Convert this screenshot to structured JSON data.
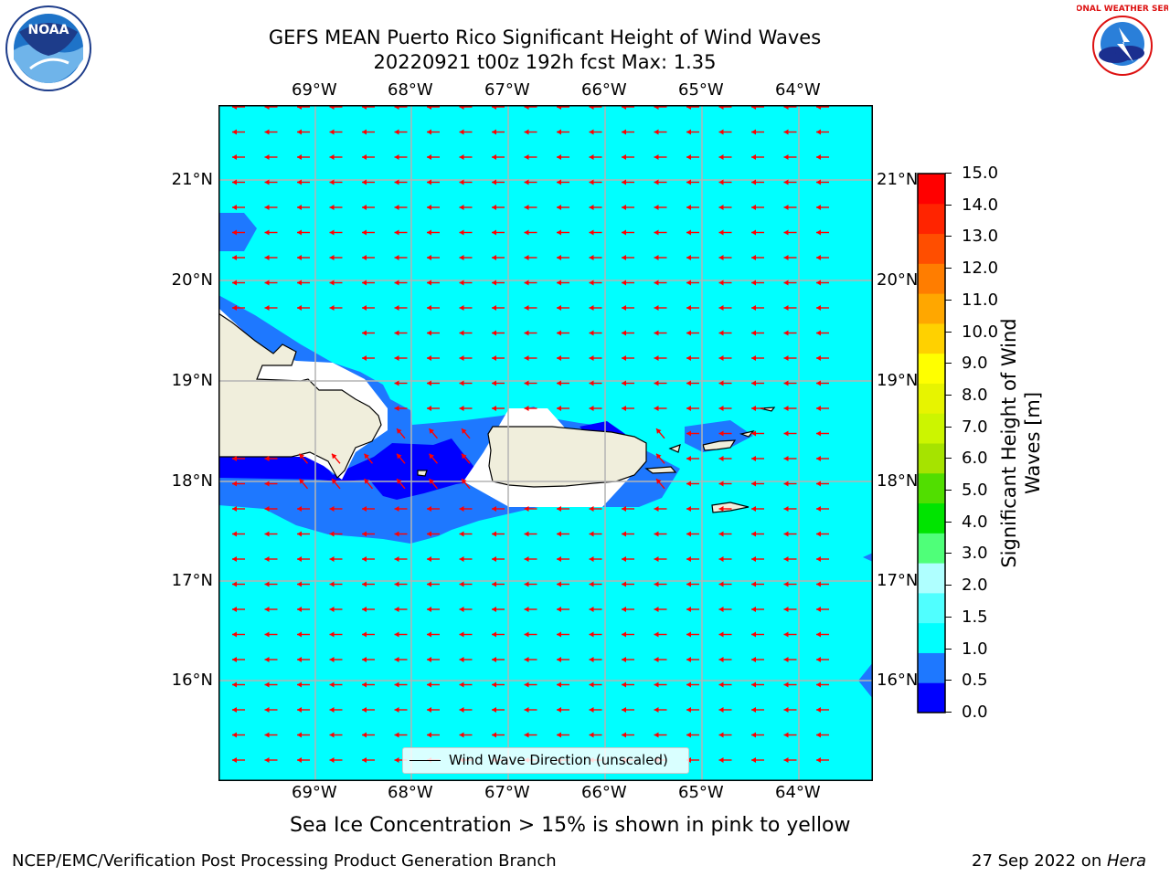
{
  "title_line1": "GEFS MEAN Puerto Rico Significant Height of Wind Waves",
  "title_line2": "20220921 t00z 192h fcst   Max: 1.35",
  "lon_labels": [
    "69°W",
    "68°W",
    "67°W",
    "66°W",
    "65°W",
    "64°W"
  ],
  "lat_labels": [
    "21°N",
    "20°N",
    "19°N",
    "18°N",
    "17°N",
    "16°N"
  ],
  "legend_label": "Wind Wave Direction (unscaled)",
  "colorbar": {
    "title_line1": "Significant Height of Wind",
    "title_line2": "Waves [m]",
    "ticks": [
      "0.0",
      "0.5",
      "1.0",
      "1.5",
      "2.0",
      "3.0",
      "4.0",
      "5.0",
      "6.0",
      "7.0",
      "8.0",
      "9.0",
      "10.0",
      "11.0",
      "12.0",
      "13.0",
      "14.0",
      "15.0"
    ],
    "colors": [
      "#0000ff",
      "#1e78ff",
      "#00ffff",
      "#50ffff",
      "#afffff",
      "#4fff79",
      "#00e400",
      "#51de00",
      "#a6e300",
      "#ccf500",
      "#e7f400",
      "#ffff00",
      "#ffd100",
      "#ffa700",
      "#ff7d00",
      "#ff4e00",
      "#ff2400",
      "#ff0000"
    ]
  },
  "note": "Sea Ice Concentration > 15% is shown in pink to yellow",
  "footer_left": "NCEP/EMC/Verification Post Processing Product Generation Branch",
  "footer_right_prefix": "27 Sep 2022 on",
  "footer_right_host": "Hera",
  "logos": {
    "left": "NOAA",
    "right": "NATIONAL WEATHER SERVICE"
  },
  "colors": {
    "ocean": "#00ffff",
    "wave_mid": "#1e78ff",
    "wave_low": "#0000ff",
    "land": "#f0eedc",
    "arrow": "#ff0000",
    "grid": "#bbbbbb"
  }
}
